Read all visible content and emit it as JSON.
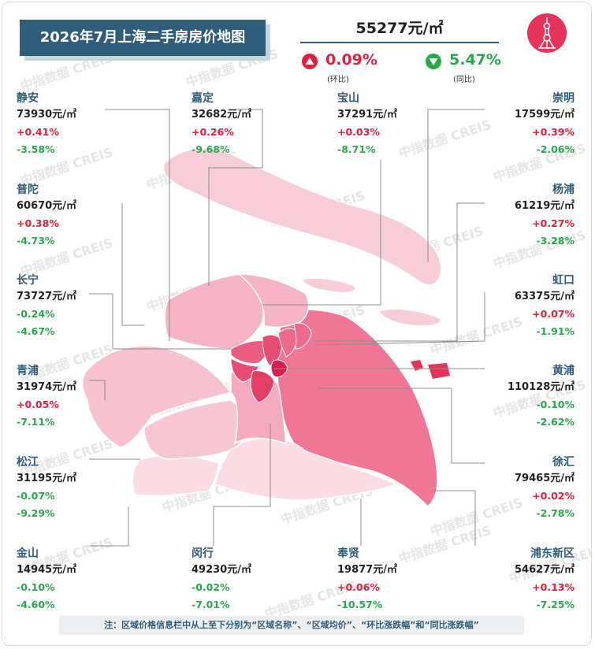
{
  "title": "2026年7月上海二手房房价地图",
  "summary": {
    "avg_price": "55277元/㎡",
    "mom_value": "0.09%",
    "mom_label": "(环比)",
    "yoy_value": "5.47%",
    "yoy_label": "(同比)"
  },
  "watermark": "中指数据 CREIS",
  "districts": [
    {
      "name": "静安",
      "price": "73930元/㎡",
      "mom": "+0.41%",
      "yoy": "-3.58%"
    },
    {
      "name": "嘉定",
      "price": "32682元/㎡",
      "mom": "+0.26%",
      "yoy": "-9.68%"
    },
    {
      "name": "宝山",
      "price": "37291元/㎡",
      "mom": "+0.03%",
      "yoy": "-8.71%"
    },
    {
      "name": "崇明",
      "price": "17599元/㎡",
      "mom": "+0.39%",
      "yoy": "-2.06%"
    },
    {
      "name": "普陀",
      "price": "60670元/㎡",
      "mom": "+0.38%",
      "yoy": "-4.73%"
    },
    {
      "name": "杨浦",
      "price": "61219元/㎡",
      "mom": "+0.27%",
      "yoy": "-3.28%"
    },
    {
      "name": "长宁",
      "price": "73727元/㎡",
      "mom": "-0.24%",
      "yoy": "-4.67%"
    },
    {
      "name": "虹口",
      "price": "63375元/㎡",
      "mom": "+0.07%",
      "yoy": "-1.91%"
    },
    {
      "name": "青浦",
      "price": "31974元/㎡",
      "mom": "+0.05%",
      "yoy": "-7.11%"
    },
    {
      "name": "黄浦",
      "price": "110128元/㎡",
      "mom": "-0.10%",
      "yoy": "-2.62%"
    },
    {
      "name": "松江",
      "price": "31195元/㎡",
      "mom": "-0.07%",
      "yoy": "-9.29%"
    },
    {
      "name": "徐汇",
      "price": "79465元/㎡",
      "mom": "+0.02%",
      "yoy": "-2.78%"
    },
    {
      "name": "金山",
      "price": "14945元/㎡",
      "mom": "-0.10%",
      "yoy": "-4.60%"
    },
    {
      "name": "闵行",
      "price": "49230元/㎡",
      "mom": "-0.02%",
      "yoy": "-7.01%"
    },
    {
      "name": "奉贤",
      "price": "19877元/㎡",
      "mom": "+0.06%",
      "yoy": "-10.57%"
    },
    {
      "name": "浦东新区",
      "price": "54627元/㎡",
      "mom": "+0.13%",
      "yoy": "-7.25%"
    }
  ],
  "note": "注：区域价格信息栏中从上至下分别为“区域名称”、“区域均价”、“环比涨跌幅”和“同比涨跌幅”",
  "colors": {
    "title_bg": "#2f5d7c",
    "up": "#e0203a",
    "down": "#27a84a",
    "accent": "#e6335a"
  },
  "icons": {
    "mom": "up-triangle-icon",
    "yoy": "down-triangle-icon",
    "logo": "oriental-pearl-tower-icon"
  }
}
